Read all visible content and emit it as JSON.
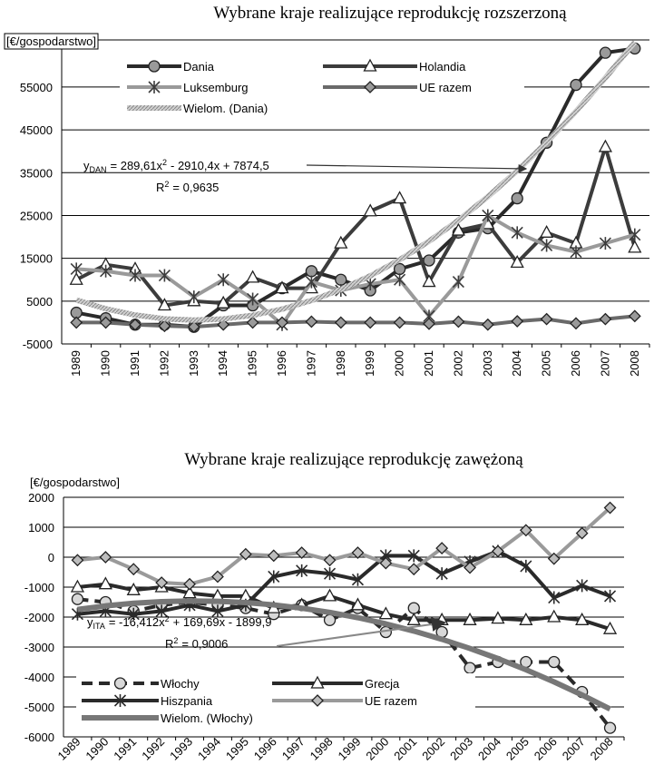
{
  "chart_data": [
    {
      "type": "line",
      "title": "Wybrane kraje realizujące reprodukcję rozszerzoną",
      "y_label": "[€/gospodarstwo]",
      "categories": [
        "1989",
        "1990",
        "1991",
        "1992",
        "1993",
        "1994",
        "1995",
        "1996",
        "1997",
        "1998",
        "1999",
        "2000",
        "2001",
        "2002",
        "2003",
        "2004",
        "2005",
        "2006",
        "2007",
        "2008"
      ],
      "ylim": [
        -5000,
        66000
      ],
      "yticks": [
        -5000,
        5000,
        15000,
        25000,
        35000,
        45000,
        55000
      ],
      "grid": true,
      "series": [
        {
          "name": "Dania",
          "color": "#2a2a2a",
          "marker": "circle",
          "marker_fill": "#9a9a9a",
          "values": [
            2300,
            1000,
            -500,
            -500,
            -1000,
            4000,
            4000,
            8000,
            12000,
            10000,
            7500,
            12500,
            14500,
            21000,
            22000,
            29000,
            42000,
            55500,
            63000,
            64000
          ]
        },
        {
          "name": "Holandia",
          "color": "#3c3c3c",
          "marker": "triangle",
          "marker_fill": "#ffffff",
          "values": [
            10000,
            13500,
            12500,
            4000,
            5000,
            4500,
            10500,
            8000,
            8000,
            18500,
            26000,
            29000,
            9500,
            21500,
            23000,
            14000,
            21000,
            18500,
            41000,
            17500
          ]
        },
        {
          "name": "Luksemburg",
          "color": "#9a9a9a",
          "marker": "asterisk",
          "marker_fill": "#3c3c3c",
          "values": [
            12500,
            12000,
            11000,
            11000,
            6000,
            10000,
            5500,
            -500,
            9500,
            7500,
            9000,
            10000,
            1500,
            9500,
            25000,
            21000,
            18000,
            16500,
            18500,
            20500
          ]
        },
        {
          "name": "UE razem",
          "color": "#6a6a6a",
          "marker": "diamond",
          "marker_fill": "#9a9a9a",
          "values": [
            0,
            0,
            -500,
            -800,
            -1000,
            -500,
            0,
            0,
            200,
            0,
            0,
            0,
            -300,
            200,
            -500,
            300,
            800,
            -200,
            800,
            1500
          ]
        },
        {
          "name": "Wielom. (Dania)",
          "color": "#b8b8b8",
          "marker": null,
          "trend": true,
          "values": [
            5253.7,
            3212.1,
            1749.8,
            866.7,
            562.8,
            838.1,
            1692.6,
            3126.3,
            5139.3,
            7731.5,
            10902.9,
            14653.5,
            18983.4,
            23892.5,
            29380.8,
            35448.3,
            42095,
            49320.9,
            57126.1,
            65510.5
          ]
        }
      ],
      "equation": {
        "lhs": "y",
        "sub": "DAN",
        "coef": "= 289,61x",
        "sup": "2",
        "rest": "- 2910,4x + 7874,5"
      },
      "r2": {
        "r": "R",
        "sup": "2",
        "rest": "= 0,9635"
      }
    },
    {
      "type": "line",
      "title": "Wybrane kraje realizujące reprodukcję zawężoną",
      "y_label": "[€/gospodarstwo]",
      "categories": [
        "1989",
        "1990",
        "1991",
        "1992",
        "1993",
        "1994",
        "1995",
        "1996",
        "1997",
        "1998",
        "1999",
        "2000",
        "2001",
        "2002",
        "2003",
        "2004",
        "2005",
        "2006",
        "2007",
        "2008"
      ],
      "ylim": [
        -6000,
        2000
      ],
      "yticks": [
        -6000,
        -5000,
        -4000,
        -3000,
        -2000,
        -1000,
        0,
        1000,
        2000
      ],
      "grid": true,
      "series": [
        {
          "name": "Włochy",
          "color": "#2a2a2a",
          "marker": "circle",
          "marker_fill": "#d8d8d8",
          "dashed": true,
          "values": [
            -1400,
            -1500,
            -1800,
            -1600,
            -1500,
            -1600,
            -1700,
            -1900,
            -1600,
            -2100,
            -1700,
            -2500,
            -1700,
            -2500,
            -3700,
            -3500,
            -3500,
            -3500,
            -4500,
            -5700
          ]
        },
        {
          "name": "Grecja",
          "color": "#2a2a2a",
          "marker": "triangle",
          "marker_fill": "#ffffff",
          "values": [
            -1000,
            -900,
            -1100,
            -1000,
            -1200,
            -1300,
            -1300,
            -1700,
            -1600,
            -1300,
            -1600,
            -1900,
            -2100,
            -2100,
            -2100,
            -2050,
            -2100,
            -2000,
            -2100,
            -2400
          ]
        },
        {
          "name": "Hiszpania",
          "color": "#2a2a2a",
          "marker": "asterisk",
          "marker_fill": "#2a2a2a",
          "values": [
            -1900,
            -1800,
            -1900,
            -1800,
            -1600,
            -1800,
            -1600,
            -650,
            -450,
            -550,
            -750,
            50,
            50,
            -550,
            -150,
            200,
            -300,
            -1350,
            -950,
            -1300
          ]
        },
        {
          "name": "UE razem",
          "color": "#9a9a9a",
          "marker": "diamond",
          "marker_fill": "#bdbdbd",
          "values": [
            -100,
            0,
            -400,
            -850,
            -900,
            -650,
            100,
            50,
            150,
            -100,
            150,
            -200,
            -400,
            300,
            -350,
            200,
            900,
            -50,
            800,
            1650
          ]
        },
        {
          "name": "Wielom. (Włochy)",
          "color": "#777777",
          "marker": null,
          "trend": true,
          "values": [
            -1746.6,
            -1626.2,
            -1538.5,
            -1483.7,
            -1461.8,
            -1472.6,
            -1516.3,
            -1592.7,
            -1702.1,
            -1844.2,
            -2019.2,
            -2226.9,
            -2467.6,
            -2741.0,
            -3047.3,
            -3386.3,
            -3758.2,
            -4163.0,
            -4600.5,
            -5070.9
          ]
        }
      ],
      "equation": {
        "lhs": "y",
        "sub": "ITA",
        "coef": "= -16,412x",
        "sup": "2",
        "rest": "+ 169,69x - 1899,9"
      },
      "r2": {
        "r": "R",
        "sup": "2",
        "rest": "= 0,9006"
      }
    }
  ]
}
